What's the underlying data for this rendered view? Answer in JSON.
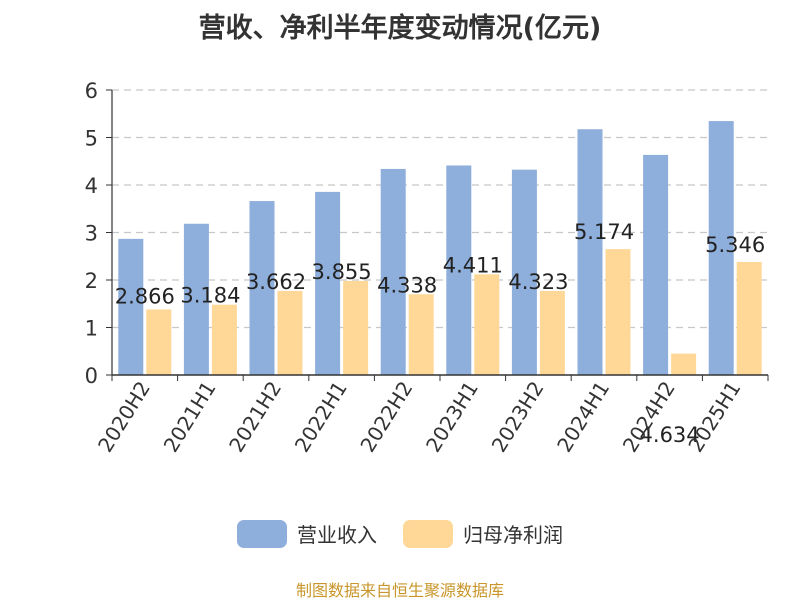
{
  "chart_data": {
    "type": "bar",
    "title": "营收、净利半年度变动情况(亿元)",
    "categories": [
      "2020H2",
      "2021H1",
      "2021H2",
      "2022H1",
      "2022H2",
      "2023H1",
      "2023H2",
      "2024H1",
      "2024H2",
      "2025H1"
    ],
    "series": [
      {
        "name": "营业收入",
        "color": "#8eaedb",
        "values": [
          2.866,
          3.184,
          3.662,
          3.855,
          4.338,
          4.411,
          4.323,
          5.174,
          4.634,
          5.346
        ]
      },
      {
        "name": "归母净利润",
        "color": "#ffd898",
        "values": [
          1.38,
          1.48,
          1.77,
          1.98,
          1.7,
          2.12,
          1.77,
          2.65,
          0.45,
          2.38
        ]
      }
    ],
    "data_labels": [
      "2.866",
      "3.184",
      "3.662",
      "3.855",
      "4.338",
      "4.411",
      "4.323",
      "5.174",
      "4.634",
      "5.346"
    ],
    "yticks": [
      0,
      1,
      2,
      3,
      4,
      5,
      6
    ],
    "ylim": [
      0,
      6
    ],
    "grid": true,
    "legend_position": "bottom"
  },
  "footer": {
    "source": "制图数据来自恒生聚源数据库"
  }
}
